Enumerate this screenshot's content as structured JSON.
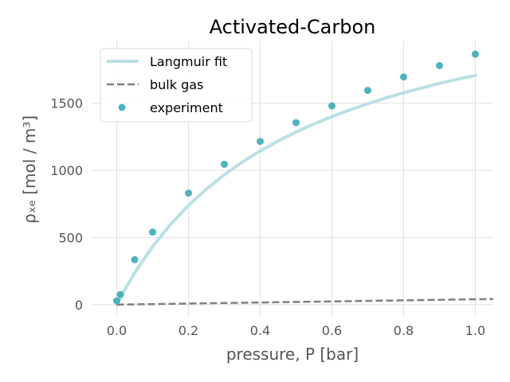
{
  "chart_data": {
    "type": "scatter",
    "title": "Activated-Carbon",
    "xlabel": "pressure, P [bar]",
    "ylabel": "ρₓₑ [mol / m³]",
    "xlim": [
      -0.07,
      1.05
    ],
    "ylim": [
      -90,
      1960
    ],
    "xticks": [
      0.0,
      0.2,
      0.4,
      0.6,
      0.8,
      1.0
    ],
    "yticks": [
      0,
      500,
      1000,
      1500
    ],
    "grid": true,
    "legend_position": "top-left",
    "series": [
      {
        "name": "Langmuir fit",
        "kind": "line",
        "color": "#b9e0e5",
        "x": [
          0.0,
          0.01,
          0.02,
          0.05,
          0.1,
          0.15,
          0.2,
          0.25,
          0.3,
          0.35,
          0.4,
          0.45,
          0.5,
          0.55,
          0.6,
          0.65,
          0.7,
          0.75,
          0.8,
          0.85,
          0.9,
          0.95,
          1.0
        ],
        "y": [
          0,
          51,
          100,
          237,
          433,
          598,
          739,
          861,
          967,
          1061,
          1144,
          1218,
          1285,
          1345,
          1400,
          1450,
          1496,
          1538,
          1577,
          1613,
          1647,
          1678,
          1707
        ]
      },
      {
        "name": "bulk gas",
        "kind": "dashed-line",
        "color": "#808080",
        "x": [
          0.0,
          1.05
        ],
        "y": [
          0,
          42
        ]
      },
      {
        "name": "experiment",
        "kind": "scatter",
        "color": "#4db3bc",
        "x": [
          0.0,
          0.01,
          0.05,
          0.1,
          0.2,
          0.3,
          0.4,
          0.5,
          0.6,
          0.7,
          0.8,
          0.9,
          1.0
        ],
        "y": [
          28,
          75,
          335,
          540,
          830,
          1045,
          1215,
          1355,
          1480,
          1595,
          1695,
          1780,
          1865
        ]
      }
    ]
  }
}
